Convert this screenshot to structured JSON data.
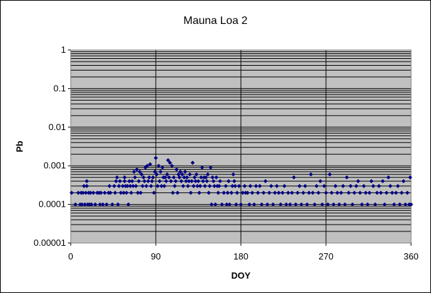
{
  "chart_data": {
    "type": "scatter",
    "title": "Mauna Loa 2",
    "xlabel": "DOY",
    "ylabel": "Pb",
    "xlim": [
      0,
      360
    ],
    "ylim": [
      1e-05,
      1
    ],
    "yscale": "log",
    "xticks": [
      0,
      90,
      180,
      270,
      360
    ],
    "xtick_labels": [
      "0",
      "90",
      "180",
      "270",
      "360"
    ],
    "yticks": [
      1e-05,
      0.0001,
      0.001,
      0.01,
      0.1,
      1
    ],
    "ytick_labels": [
      "0.00001",
      "0.0001",
      "0.001",
      "0.01",
      "0.1",
      "1"
    ],
    "grid": "major and minor horizontal, major vertical",
    "legend": "none",
    "colors": {
      "plot_background": "#c0c0c0",
      "marker": "#000080",
      "gridline": "#000000"
    },
    "marker": "diamond",
    "series": [
      {
        "x": [
          1,
          5,
          8,
          10,
          11,
          12,
          13,
          14,
          15,
          16,
          17,
          17,
          18,
          19,
          20,
          21,
          22,
          24,
          26,
          28,
          30,
          31,
          32,
          34,
          36,
          38,
          40,
          41,
          42,
          44,
          46,
          47,
          48,
          49,
          50,
          51,
          52,
          53,
          55,
          56,
          57,
          57,
          58,
          59,
          60,
          61,
          62,
          63,
          64,
          65,
          66,
          67,
          68,
          69,
          70,
          71,
          72,
          73,
          74,
          75,
          76,
          77,
          78,
          79,
          80,
          81,
          82,
          83,
          84,
          85,
          86,
          87,
          88,
          89,
          90,
          91,
          92,
          93,
          94,
          95,
          96,
          97,
          98,
          99,
          100,
          101,
          102,
          103,
          104,
          105,
          106,
          107,
          108,
          109,
          110,
          111,
          112,
          113,
          114,
          115,
          116,
          117,
          118,
          119,
          120,
          121,
          122,
          123,
          124,
          125,
          126,
          127,
          128,
          129,
          130,
          131,
          132,
          133,
          134,
          135,
          136,
          137,
          138,
          139,
          140,
          141,
          142,
          143,
          144,
          145,
          146,
          147,
          148,
          149,
          150,
          151,
          152,
          153,
          154,
          155,
          156,
          157,
          158,
          160,
          162,
          164,
          165,
          166,
          167,
          168,
          170,
          171,
          172,
          173,
          174,
          175,
          176,
          178,
          180,
          182,
          184,
          185,
          187,
          189,
          190,
          192,
          194,
          196,
          198,
          200,
          202,
          204,
          206,
          208,
          210,
          212,
          214,
          216,
          218,
          220,
          222,
          224,
          226,
          228,
          230,
          232,
          234,
          236,
          238,
          240,
          242,
          244,
          246,
          248,
          250,
          252,
          254,
          256,
          258,
          260,
          262,
          264,
          266,
          268,
          270,
          272,
          274,
          276,
          278,
          280,
          282,
          284,
          286,
          288,
          290,
          292,
          294,
          296,
          298,
          300,
          302,
          304,
          306,
          308,
          310,
          312,
          314,
          316,
          318,
          320,
          322,
          324,
          326,
          328,
          330,
          332,
          334,
          336,
          338,
          340,
          342,
          344,
          346,
          348,
          350,
          352,
          354,
          356,
          358,
          359,
          360
        ],
        "y": [
          0.0002,
          0.0001,
          0.0002,
          0.0001,
          0.0002,
          0.0001,
          0.0002,
          0.0003,
          0.0001,
          0.0002,
          0.0004,
          0.0003,
          0.0001,
          0.0002,
          0.0001,
          0.0002,
          0.0001,
          0.0002,
          0.0001,
          0.0002,
          0.0002,
          0.0001,
          0.0002,
          0.0001,
          0.0002,
          0.0001,
          0.0002,
          0.0003,
          0.0002,
          0.0001,
          0.0003,
          0.0002,
          0.0004,
          0.0005,
          0.0001,
          0.0003,
          0.0004,
          0.0002,
          0.0003,
          0.0002,
          0.0004,
          0.0005,
          0.0003,
          0.0002,
          0.0003,
          0.0001,
          0.0004,
          0.0003,
          0.0002,
          0.0004,
          0.0003,
          0.0007,
          0.0005,
          0.0003,
          0.0008,
          0.0002,
          0.0004,
          0.0007,
          0.0002,
          0.0006,
          0.0003,
          0.0005,
          0.0004,
          0.0009,
          0.0003,
          0.001,
          0.0004,
          0.0005,
          0.0011,
          0.0003,
          0.0004,
          0.0005,
          0.0002,
          0.0007,
          0.0016,
          0.0006,
          0.0003,
          0.001,
          0.0004,
          0.0007,
          0.0003,
          0.0009,
          0.0005,
          0.0003,
          0.0005,
          0.0004,
          0.0006,
          0.0014,
          0.0005,
          0.0012,
          0.0004,
          0.001,
          0.0002,
          0.0005,
          0.0003,
          0.0004,
          0.0008,
          0.0002,
          0.0006,
          0.0005,
          0.0007,
          0.0004,
          0.0006,
          0.0003,
          0.0005,
          0.0007,
          0.0004,
          0.0005,
          0.0003,
          0.0004,
          0.0006,
          0.0002,
          0.0004,
          0.0012,
          0.0003,
          0.0005,
          0.0004,
          0.0006,
          0.0003,
          0.0004,
          0.0002,
          0.0003,
          0.0005,
          0.0009,
          0.0004,
          0.0005,
          0.0003,
          0.0005,
          0.0004,
          0.0006,
          0.0002,
          0.0003,
          0.0009,
          0.0001,
          0.0005,
          0.0004,
          0.0003,
          0.0001,
          0.0005,
          0.0003,
          0.0002,
          0.0003,
          0.0004,
          0.0001,
          0.0002,
          0.0003,
          0.0001,
          0.0002,
          0.0004,
          0.0001,
          0.0002,
          0.0003,
          0.0006,
          0.0004,
          0.0003,
          0.0001,
          0.0002,
          0.0003,
          0.0001,
          0.0002,
          0.0003,
          0.0002,
          0.0002,
          0.0001,
          0.0003,
          0.0002,
          0.0001,
          0.0003,
          0.0002,
          0.0003,
          0.0001,
          0.0002,
          0.0004,
          0.0001,
          0.0002,
          0.0003,
          0.0001,
          0.0002,
          0.0003,
          0.0002,
          0.0001,
          0.0002,
          0.0003,
          0.0001,
          0.0002,
          0.0001,
          0.0002,
          0.0005,
          0.0001,
          0.0002,
          0.0003,
          0.0001,
          0.0002,
          0.0003,
          0.0001,
          0.0002,
          0.0006,
          0.0002,
          0.0001,
          0.0003,
          0.0002,
          0.0004,
          0.0001,
          0.0003,
          0.0002,
          0.0001,
          0.0006,
          0.0002,
          0.0001,
          0.0003,
          0.0002,
          0.0001,
          0.0002,
          0.0003,
          0.0001,
          0.0005,
          0.0002,
          0.0003,
          0.0001,
          0.0002,
          0.0003,
          0.0004,
          0.0002,
          0.0001,
          0.0003,
          0.0002,
          0.0001,
          0.0002,
          0.0004,
          0.0003,
          0.0001,
          0.0002,
          0.0003,
          0.0002,
          0.0004,
          0.0001,
          0.0002,
          0.0005,
          0.0003,
          0.0002,
          0.0001,
          0.0002,
          0.0003,
          0.0001,
          0.0002,
          0.0004,
          0.0001,
          0.0002,
          0.0001,
          0.0005,
          0.0001
        ]
      }
    ]
  }
}
